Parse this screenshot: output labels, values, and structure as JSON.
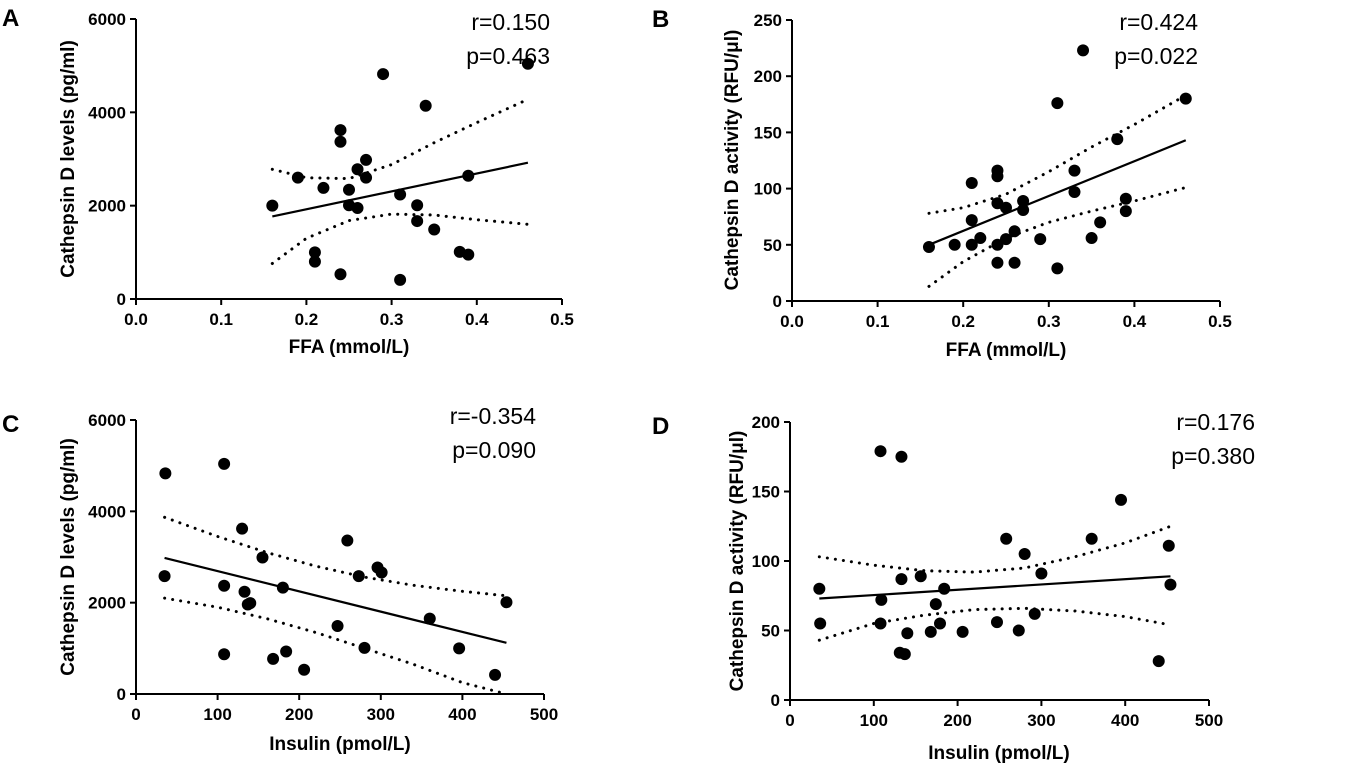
{
  "chart_data": [
    {
      "panel": "A",
      "type": "scatter",
      "xlabel": "FFA (mmol/L)",
      "ylabel": "Cathepsin D levels (pg/ml)",
      "xlim": [
        0.0,
        0.5
      ],
      "ylim": [
        0,
        6000
      ],
      "x_ticks": [
        "0.0",
        "0.1",
        "0.2",
        "0.3",
        "0.4",
        "0.5"
      ],
      "y_ticks": [
        "0",
        "2000",
        "4000",
        "6000"
      ],
      "stats": [
        "r=0.150",
        "p=0.463"
      ],
      "points": [
        {
          "x": 0.16,
          "y": 2000
        },
        {
          "x": 0.19,
          "y": 2600
        },
        {
          "x": 0.21,
          "y": 1000
        },
        {
          "x": 0.21,
          "y": 800
        },
        {
          "x": 0.22,
          "y": 2380
        },
        {
          "x": 0.24,
          "y": 3620
        },
        {
          "x": 0.24,
          "y": 3370
        },
        {
          "x": 0.24,
          "y": 530
        },
        {
          "x": 0.25,
          "y": 2340
        },
        {
          "x": 0.25,
          "y": 2010
        },
        {
          "x": 0.26,
          "y": 2780
        },
        {
          "x": 0.26,
          "y": 1950
        },
        {
          "x": 0.27,
          "y": 2980
        },
        {
          "x": 0.27,
          "y": 2600
        },
        {
          "x": 0.29,
          "y": 4820
        },
        {
          "x": 0.31,
          "y": 2240
        },
        {
          "x": 0.31,
          "y": 410
        },
        {
          "x": 0.33,
          "y": 2010
        },
        {
          "x": 0.33,
          "y": 1670
        },
        {
          "x": 0.34,
          "y": 4140
        },
        {
          "x": 0.35,
          "y": 1490
        },
        {
          "x": 0.38,
          "y": 1010
        },
        {
          "x": 0.39,
          "y": 2640
        },
        {
          "x": 0.39,
          "y": 950
        },
        {
          "x": 0.46,
          "y": 5040
        }
      ],
      "regression": {
        "x": [
          0.16,
          0.46
        ],
        "y": [
          1770,
          2920
        ]
      },
      "ci_upper": {
        "x": [
          0.16,
          0.2,
          0.25,
          0.3,
          0.35,
          0.4,
          0.46
        ],
        "y": [
          2780,
          2600,
          2580,
          2880,
          3350,
          3780,
          4280
        ]
      },
      "ci_lower": {
        "x": [
          0.16,
          0.2,
          0.25,
          0.3,
          0.35,
          0.4,
          0.46
        ],
        "y": [
          760,
          1300,
          1680,
          1820,
          1800,
          1700,
          1600
        ]
      }
    },
    {
      "panel": "B",
      "type": "scatter",
      "xlabel": "FFA (mmol/L)",
      "ylabel": "Cathepsin D activity (RFU/μl)",
      "xlim": [
        0.0,
        0.5
      ],
      "ylim": [
        0,
        250
      ],
      "x_ticks": [
        "0.0",
        "0.1",
        "0.2",
        "0.3",
        "0.4",
        "0.5"
      ],
      "y_ticks": [
        "0",
        "50",
        "100",
        "150",
        "200",
        "250"
      ],
      "stats": [
        "r=0.424",
        "p=0.022"
      ],
      "points": [
        {
          "x": 0.16,
          "y": 48
        },
        {
          "x": 0.19,
          "y": 50
        },
        {
          "x": 0.21,
          "y": 105
        },
        {
          "x": 0.21,
          "y": 72
        },
        {
          "x": 0.21,
          "y": 50
        },
        {
          "x": 0.22,
          "y": 56
        },
        {
          "x": 0.24,
          "y": 116
        },
        {
          "x": 0.24,
          "y": 111
        },
        {
          "x": 0.24,
          "y": 87
        },
        {
          "x": 0.24,
          "y": 50
        },
        {
          "x": 0.24,
          "y": 34
        },
        {
          "x": 0.25,
          "y": 83
        },
        {
          "x": 0.25,
          "y": 55
        },
        {
          "x": 0.26,
          "y": 62
        },
        {
          "x": 0.26,
          "y": 34
        },
        {
          "x": 0.27,
          "y": 89
        },
        {
          "x": 0.27,
          "y": 81
        },
        {
          "x": 0.29,
          "y": 55
        },
        {
          "x": 0.31,
          "y": 176
        },
        {
          "x": 0.31,
          "y": 29
        },
        {
          "x": 0.33,
          "y": 116
        },
        {
          "x": 0.33,
          "y": 97
        },
        {
          "x": 0.34,
          "y": 223
        },
        {
          "x": 0.35,
          "y": 56
        },
        {
          "x": 0.36,
          "y": 70
        },
        {
          "x": 0.38,
          "y": 144
        },
        {
          "x": 0.39,
          "y": 91
        },
        {
          "x": 0.39,
          "y": 80
        },
        {
          "x": 0.46,
          "y": 180
        }
      ],
      "regression": {
        "x": [
          0.16,
          0.46
        ],
        "y": [
          50,
          143
        ]
      },
      "ci_upper": {
        "x": [
          0.16,
          0.2,
          0.25,
          0.3,
          0.35,
          0.4,
          0.46
        ],
        "y": [
          78,
          83,
          95,
          115,
          137,
          157,
          183
        ]
      },
      "ci_lower": {
        "x": [
          0.16,
          0.2,
          0.25,
          0.3,
          0.35,
          0.4,
          0.46
        ],
        "y": [
          13,
          35,
          56,
          70,
          80,
          89,
          101
        ]
      }
    },
    {
      "panel": "C",
      "type": "scatter",
      "xlabel": "Insulin (pmol/L)",
      "ylabel": "Cathepsin D levels (pg/ml)",
      "xlim": [
        0,
        500
      ],
      "ylim": [
        0,
        6000
      ],
      "x_ticks": [
        "0",
        "100",
        "200",
        "300",
        "400",
        "500"
      ],
      "y_ticks": [
        "0",
        "2000",
        "4000",
        "6000"
      ],
      "stats": [
        "r=-0.354",
        "p=0.090"
      ],
      "points": [
        {
          "x": 36,
          "y": 4830
        },
        {
          "x": 35,
          "y": 2580
        },
        {
          "x": 108,
          "y": 5040
        },
        {
          "x": 108,
          "y": 2370
        },
        {
          "x": 108,
          "y": 870
        },
        {
          "x": 130,
          "y": 3620
        },
        {
          "x": 133,
          "y": 2240
        },
        {
          "x": 137,
          "y": 1960
        },
        {
          "x": 140,
          "y": 1990
        },
        {
          "x": 155,
          "y": 2990
        },
        {
          "x": 168,
          "y": 770
        },
        {
          "x": 180,
          "y": 2330
        },
        {
          "x": 184,
          "y": 930
        },
        {
          "x": 206,
          "y": 530
        },
        {
          "x": 247,
          "y": 1490
        },
        {
          "x": 259,
          "y": 3360
        },
        {
          "x": 273,
          "y": 2580
        },
        {
          "x": 280,
          "y": 1010
        },
        {
          "x": 296,
          "y": 2770
        },
        {
          "x": 301,
          "y": 2660
        },
        {
          "x": 360,
          "y": 1650
        },
        {
          "x": 396,
          "y": 1000
        },
        {
          "x": 440,
          "y": 420
        },
        {
          "x": 454,
          "y": 2010
        }
      ],
      "regression": {
        "x": [
          35,
          454
        ],
        "y": [
          2980,
          1120
        ]
      },
      "ci_upper": {
        "x": [
          35,
          100,
          160,
          220,
          280,
          340,
          400,
          454
        ],
        "y": [
          3870,
          3450,
          3100,
          2800,
          2560,
          2380,
          2250,
          2150
        ]
      },
      "ci_lower": {
        "x": [
          35,
          100,
          160,
          220,
          280,
          340,
          400,
          454
        ],
        "y": [
          2100,
          1900,
          1650,
          1350,
          1000,
          650,
          250,
          0
        ]
      }
    },
    {
      "panel": "D",
      "type": "scatter",
      "xlabel": "Insulin (pmol/L)",
      "ylabel": "Cathepsin D activity (RFU/μl)",
      "xlim": [
        0,
        500
      ],
      "ylim": [
        0,
        200
      ],
      "x_ticks": [
        "0",
        "100",
        "200",
        "300",
        "400",
        "500"
      ],
      "y_ticks": [
        "0",
        "50",
        "100",
        "150",
        "200"
      ],
      "stats": [
        "r=0.176",
        "p=0.380"
      ],
      "points": [
        {
          "x": 35,
          "y": 80
        },
        {
          "x": 36,
          "y": 55
        },
        {
          "x": 108,
          "y": 179
        },
        {
          "x": 109,
          "y": 72
        },
        {
          "x": 108,
          "y": 55
        },
        {
          "x": 133,
          "y": 175
        },
        {
          "x": 133,
          "y": 87
        },
        {
          "x": 131,
          "y": 34
        },
        {
          "x": 137,
          "y": 33
        },
        {
          "x": 140,
          "y": 48
        },
        {
          "x": 156,
          "y": 89
        },
        {
          "x": 168,
          "y": 49
        },
        {
          "x": 174,
          "y": 69
        },
        {
          "x": 179,
          "y": 55
        },
        {
          "x": 184,
          "y": 80
        },
        {
          "x": 206,
          "y": 49
        },
        {
          "x": 247,
          "y": 56
        },
        {
          "x": 258,
          "y": 116
        },
        {
          "x": 273,
          "y": 50
        },
        {
          "x": 280,
          "y": 105
        },
        {
          "x": 292,
          "y": 62
        },
        {
          "x": 300,
          "y": 91
        },
        {
          "x": 360,
          "y": 116
        },
        {
          "x": 395,
          "y": 144
        },
        {
          "x": 440,
          "y": 28
        },
        {
          "x": 452,
          "y": 111
        },
        {
          "x": 454,
          "y": 83
        }
      ],
      "regression": {
        "x": [
          35,
          454
        ],
        "y": [
          73,
          89
        ]
      },
      "ci_upper": {
        "x": [
          35,
          100,
          160,
          220,
          280,
          340,
          400,
          454
        ],
        "y": [
          103,
          97,
          93,
          92,
          95,
          103,
          113,
          125
        ]
      },
      "ci_lower": {
        "x": [
          35,
          100,
          160,
          220,
          280,
          340,
          400,
          454
        ],
        "y": [
          43,
          55,
          61,
          65,
          66,
          64,
          60,
          54
        ]
      }
    }
  ]
}
